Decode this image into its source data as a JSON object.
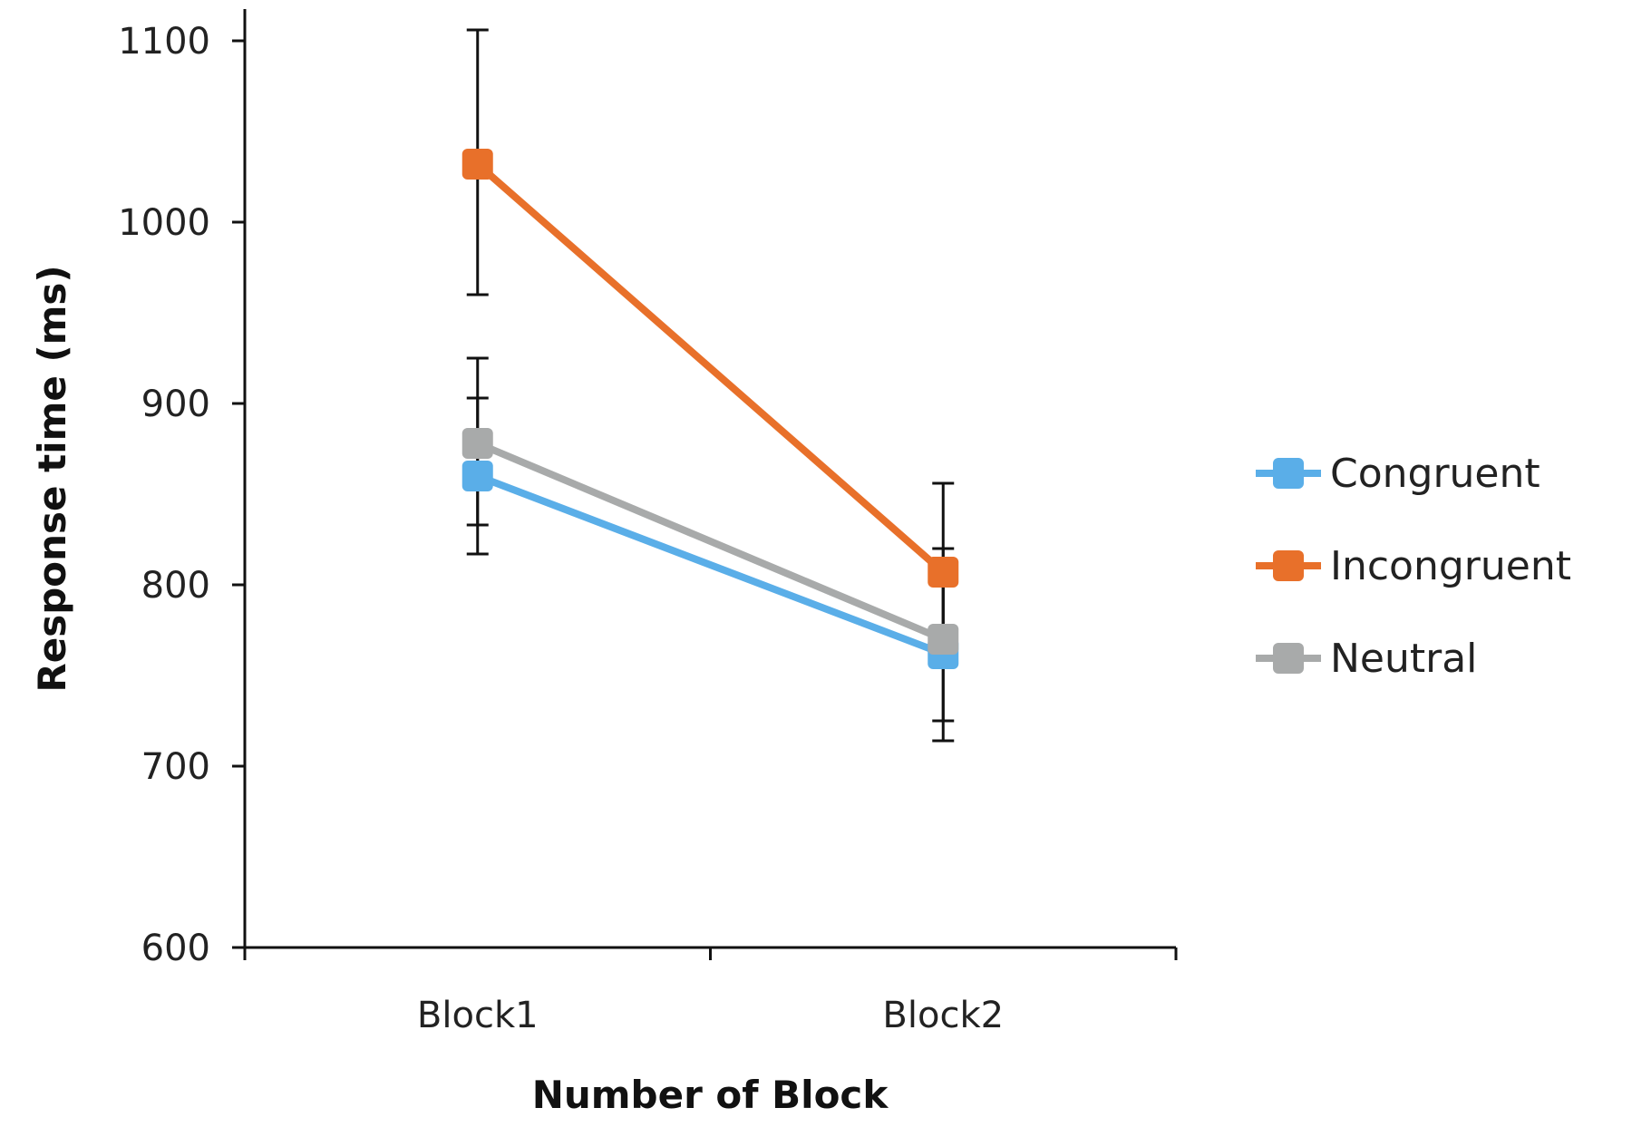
{
  "chart_data": {
    "type": "line",
    "title": "",
    "xlabel": "Number of Block",
    "ylabel": "Response time (ms)",
    "categories": [
      "Block1",
      "Block2"
    ],
    "ylim": [
      600,
      1100
    ],
    "yticks": [
      600,
      700,
      800,
      900,
      1000,
      1100
    ],
    "grid": false,
    "legend_position": "right",
    "series": [
      {
        "name": "Congruent",
        "color": "#5aaee8",
        "values": [
          860,
          762
        ],
        "error": [
          [
            817,
            903
          ],
          [
            725,
            800
          ]
        ]
      },
      {
        "name": "Incongruent",
        "color": "#e8702a",
        "values": [
          1032,
          807
        ],
        "error": [
          [
            960,
            1106
          ],
          [
            760,
            856
          ]
        ]
      },
      {
        "name": "Neutral",
        "color": "#a8aaaa",
        "values": [
          878,
          770
        ],
        "error": [
          [
            833,
            925
          ],
          [
            714,
            820
          ]
        ]
      }
    ]
  }
}
